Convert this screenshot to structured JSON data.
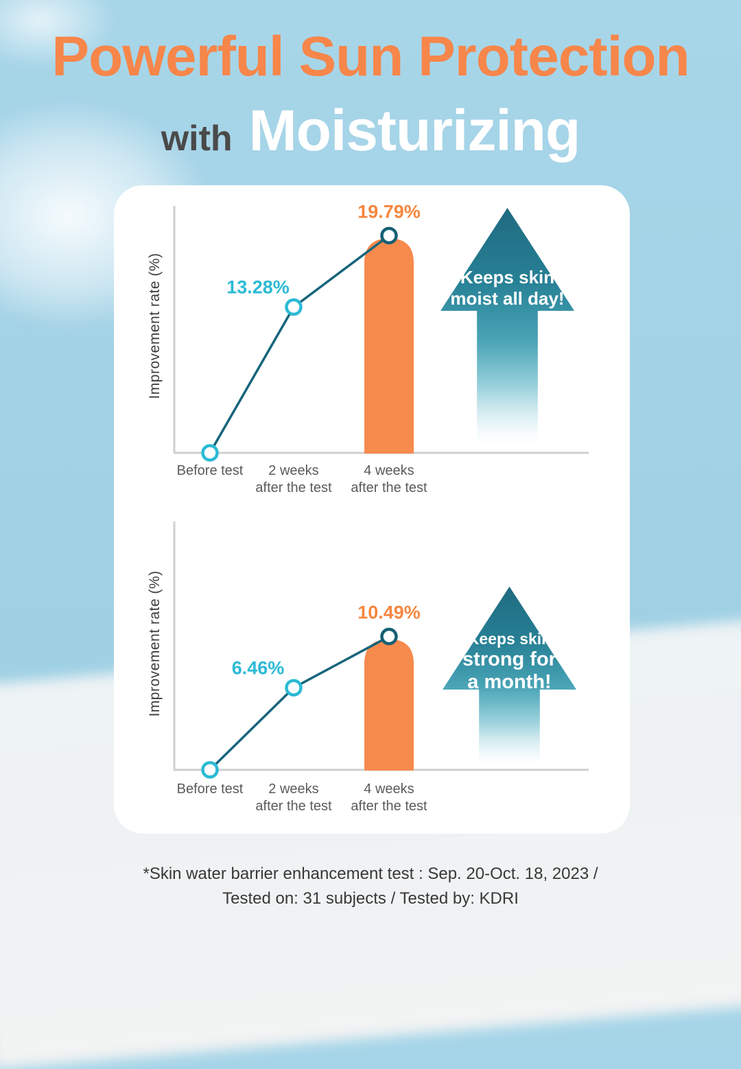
{
  "page": {
    "title_line1": "Powerful Sun Protection",
    "title_line2_prefix": "with",
    "title_line2_main": "Moisturizing",
    "footer_line1": "*Skin water barrier enhancement test : Sep. 20-Oct. 18, 2023 /",
    "footer_line2": "Tested on: 31 subjects / Tested by: KDRI"
  },
  "colors": {
    "title_orange": "#f6864a",
    "title_gray": "#4a4a4a",
    "title_white": "#ffffff",
    "sky_blue": "#a3d2e6",
    "cyan_accent": "#2bbad5",
    "teal_line": "#16657b",
    "teal_marker": "#155f74",
    "bar_orange": "#f78a4d",
    "value_label_orange": "#f6863f",
    "arrow_teal_dark": "#1f6a80",
    "axis_gray": "#cfcfcf"
  },
  "chart_data": [
    {
      "type": "line",
      "ylabel": "Improvement rate (%)",
      "categories": [
        "Before test",
        "2 weeks\nafter the test",
        "4 weeks\nafter the test"
      ],
      "values": [
        0,
        13.28,
        19.79
      ],
      "point_labels": [
        "",
        "13.28%",
        "19.79%"
      ],
      "ylim": [
        0,
        22.5
      ],
      "grid": false,
      "legend": "none",
      "bar": {
        "category_index": 2,
        "value": 19.79
      },
      "annotation": [
        "Keeps skin",
        "moist all day!"
      ]
    },
    {
      "type": "line",
      "ylabel": "Improvement rate (%)",
      "categories": [
        "Before test",
        "2 weeks\nafter the test",
        "4 weeks\nafter the test"
      ],
      "values": [
        0,
        6.46,
        10.49
      ],
      "point_labels": [
        "",
        "6.46%",
        "10.49%"
      ],
      "ylim": [
        0,
        19
      ],
      "grid": false,
      "legend": "none",
      "bar": {
        "category_index": 2,
        "value": 10.49
      },
      "annotation": [
        "Keeps skin",
        "strong for",
        "a month!"
      ]
    }
  ]
}
